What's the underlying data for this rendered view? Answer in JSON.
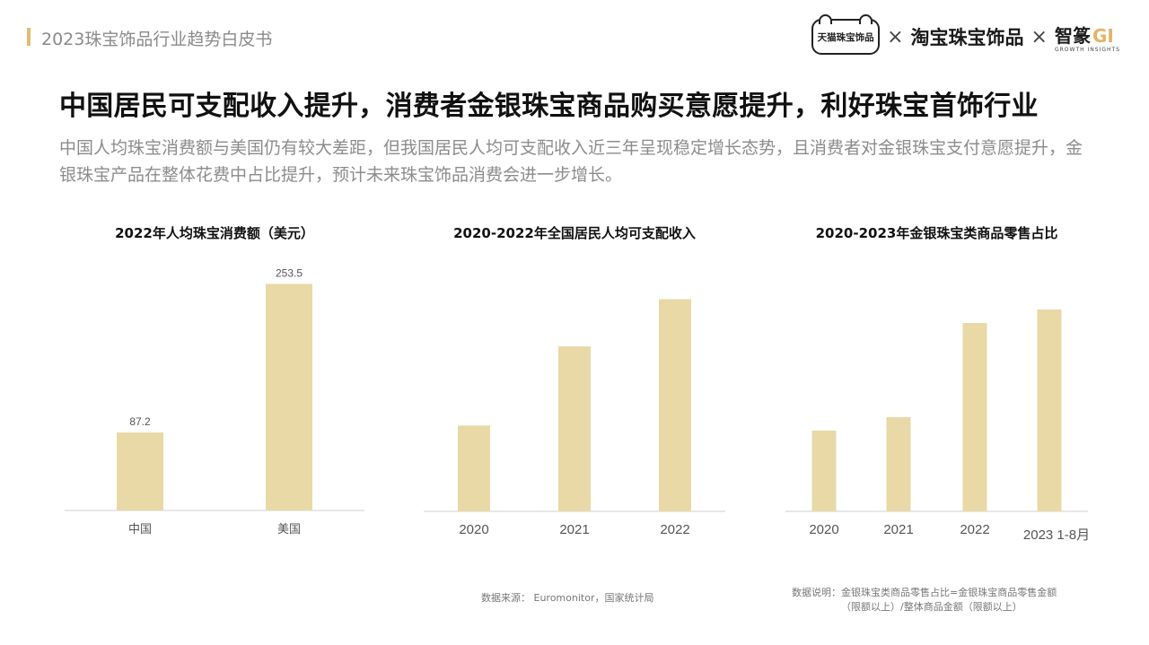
{
  "header": {
    "doc_title": "2023珠宝饰品行业趋势白皮书",
    "logos": {
      "tmall": "天猫珠宝饰品",
      "sep1": "×",
      "taobao": "淘宝珠宝饰品",
      "sep2": "×",
      "gi_cn": "智篆",
      "gi_en": "GI",
      "gi_sub": "GROWTH INSIGHTS"
    }
  },
  "headline": "中国居民可支配收入提升，消费者金银珠宝商品购买意愿提升，利好珠宝首饰行业",
  "subtext": "中国人均珠宝消费额与美国仍有较大差距，但我国居民人均可支配收入近三年呈现稳定增长态势，且消费者对金银珠宝支付意愿提升，金银珠宝产品在整体花费中占比提升，预计未来珠宝饰品消费会进一步增长。",
  "chart_data": [
    {
      "type": "bar",
      "title": "2022年人均珠宝消费额（美元）",
      "categories": [
        "中国",
        "美国"
      ],
      "values": [
        87.2,
        253.5
      ],
      "data_labels": [
        "87.2",
        "253.5"
      ],
      "ylim": [
        0,
        270
      ],
      "grid": false,
      "bar_color": "#e8d9a6"
    },
    {
      "type": "bar",
      "title": "2020-2022年全国居民人均可支配收入",
      "categories": [
        "2020",
        "2021",
        "2022"
      ],
      "values": [
        32189,
        35128,
        36883
      ],
      "ylim": [
        29000,
        38000
      ],
      "grid": false,
      "bar_color": "#e8d9a6"
    },
    {
      "type": "bar",
      "title": "2020-2023年金银珠宝类商品零售占比",
      "categories": [
        "2020",
        "2021",
        "2022",
        "2023 1-8月"
      ],
      "values": [
        1.8,
        1.9,
        2.6,
        2.7
      ],
      "ylim": [
        1.2,
        3.0
      ],
      "grid": false,
      "bar_color": "#e8d9a6"
    }
  ],
  "source_note": "数据来源： Euromonitor，国家统计局",
  "desc_note": {
    "line1": "数据说明：金银珠宝类商品零售占比=金银珠宝商品零售金额",
    "line2": "（限额以上）/整体商品金额（限额以上）"
  }
}
